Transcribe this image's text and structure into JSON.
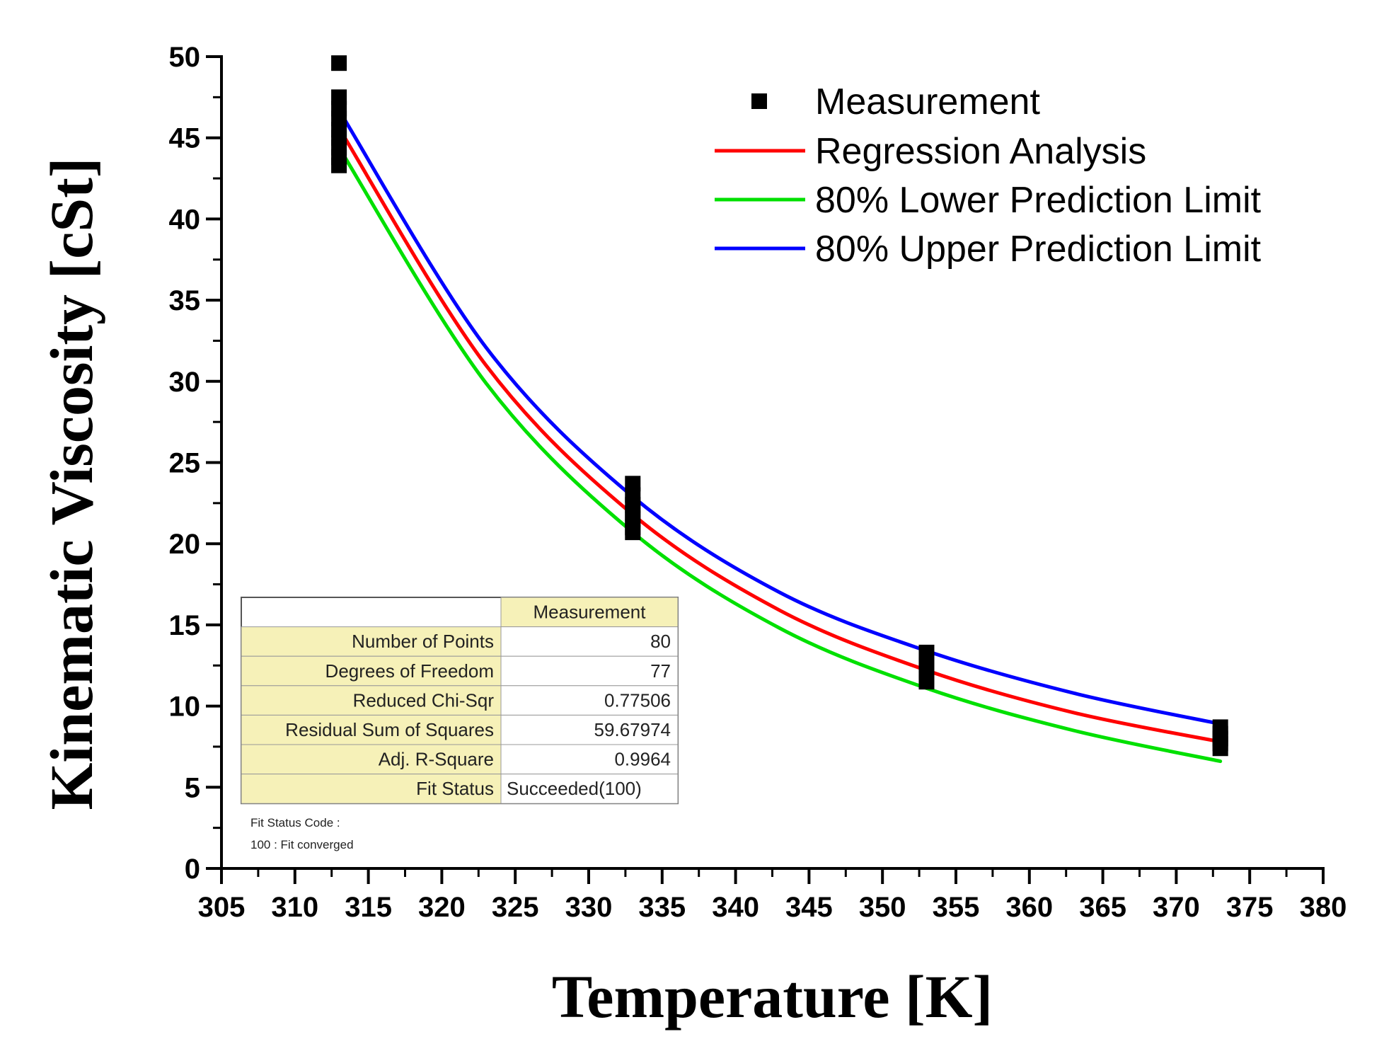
{
  "chart_data": {
    "type": "line",
    "title": "",
    "xlabel": "Temperature [K]",
    "ylabel": "Kinematic Viscosity [cSt]",
    "xlim": [
      305,
      380
    ],
    "ylim": [
      0,
      50
    ],
    "xticks": [
      305,
      310,
      315,
      320,
      325,
      330,
      335,
      340,
      345,
      350,
      355,
      360,
      365,
      370,
      375,
      380
    ],
    "yticks": [
      0,
      5,
      10,
      15,
      20,
      25,
      30,
      35,
      40,
      45,
      50
    ],
    "grid": false,
    "legend_position": "top-right",
    "measurement": {
      "name": "Measurement",
      "color": "#000000",
      "groups": [
        {
          "x": 313,
          "values": [
            49.6,
            47.5,
            46.8,
            46.2,
            45.5,
            45.0,
            44.4,
            43.8,
            43.3
          ]
        },
        {
          "x": 333,
          "values": [
            23.7,
            23.0,
            22.4,
            21.9,
            21.5,
            21.0,
            20.7
          ]
        },
        {
          "x": 353,
          "values": [
            13.3,
            12.9,
            12.5,
            12.1,
            11.8,
            11.5
          ]
        },
        {
          "x": 373,
          "values": [
            8.7,
            8.3,
            8.0,
            7.7,
            7.4
          ]
        }
      ]
    },
    "series": [
      {
        "name": "Regression Analysis",
        "color": "#ff0000",
        "x": [
          313,
          323,
          333,
          343,
          353,
          363,
          373
        ],
        "values": [
          45.6,
          31.0,
          21.8,
          15.9,
          12.2,
          9.6,
          7.8
        ]
      },
      {
        "name": "80% Lower Prediction Limit",
        "color": "#00e000",
        "x": [
          313,
          323,
          333,
          343,
          353,
          363,
          373
        ],
        "values": [
          44.4,
          29.9,
          20.7,
          14.8,
          11.1,
          8.5,
          6.6
        ]
      },
      {
        "name": "80% Upper Prediction Limit",
        "color": "#0000ff",
        "x": [
          313,
          323,
          333,
          343,
          353,
          363,
          373
        ],
        "values": [
          46.7,
          32.1,
          22.9,
          17.0,
          13.4,
          10.8,
          8.9
        ]
      }
    ],
    "fit_table": {
      "header": "Measurement",
      "rows": [
        {
          "label": "Number of Points",
          "value": "80"
        },
        {
          "label": "Degrees of Freedom",
          "value": "77"
        },
        {
          "label": "Reduced Chi-Sqr",
          "value": "0.77506"
        },
        {
          "label": "Residual Sum of Squares",
          "value": "59.67974"
        },
        {
          "label": "Adj. R-Square",
          "value": "0.9964"
        },
        {
          "label": "Fit Status",
          "value": "Succeeded(100)"
        }
      ],
      "notes": [
        "Fit Status Code :",
        "100 : Fit converged"
      ]
    }
  }
}
